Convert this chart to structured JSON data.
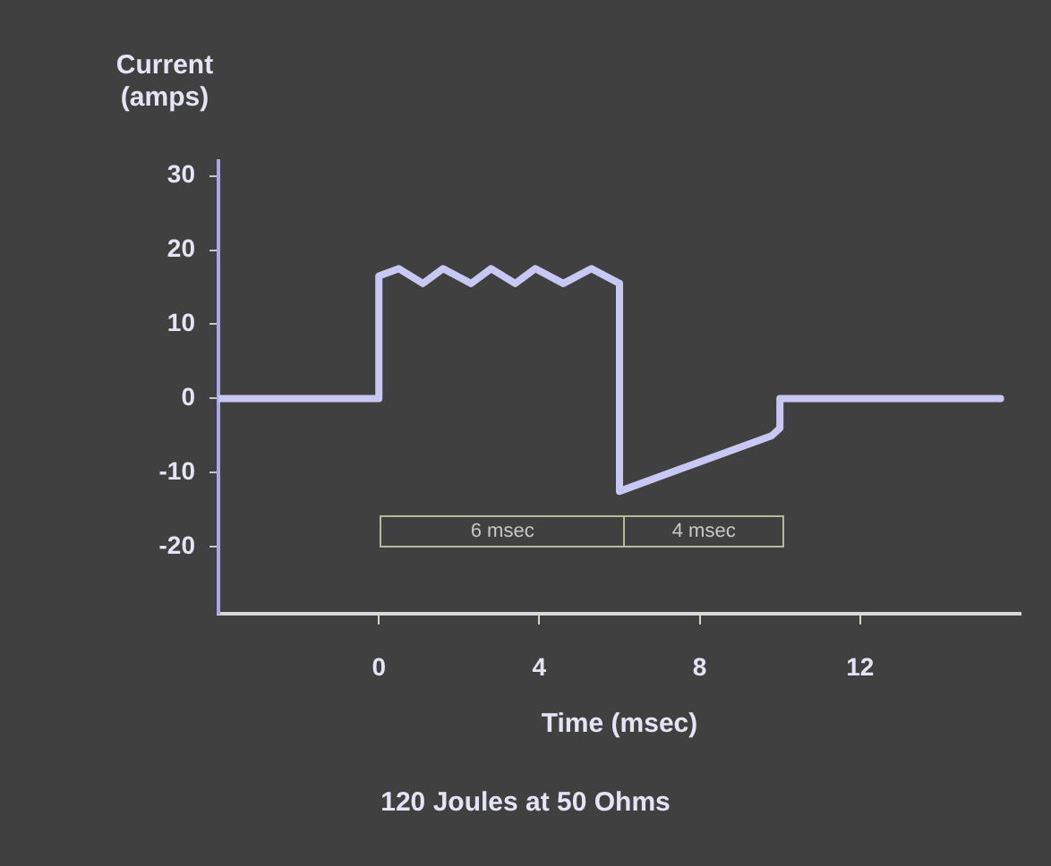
{
  "chart_data": {
    "type": "line",
    "xlabel": "Time (msec)",
    "ylabel": "Current (amps)",
    "xlim": [
      -4,
      16
    ],
    "xticks": [
      0,
      4,
      8,
      12
    ],
    "ylim": [
      -29,
      32
    ],
    "yticks": [
      30,
      20,
      10,
      0,
      -10,
      -20
    ],
    "grid": false,
    "legend": false,
    "marker": "none",
    "line_style": "solid",
    "series": [
      {
        "color": "#c8c8f4",
        "x": [
          -4,
          0,
          0,
          0.5,
          1.1,
          1.6,
          2.3,
          2.8,
          3.4,
          3.9,
          4.6,
          5.3,
          6,
          6,
          9.8,
          10,
          10,
          15.5
        ],
        "values": [
          0,
          0,
          16.5,
          17.5,
          15.5,
          17.5,
          15.5,
          17.5,
          15.5,
          17.5,
          15.5,
          17.5,
          15.5,
          -12.5,
          -5,
          -4,
          0,
          0
        ]
      }
    ],
    "annotations": [
      "6 msec",
      "4 msec",
      "120 Joules at 50 Ohms"
    ]
  }
}
